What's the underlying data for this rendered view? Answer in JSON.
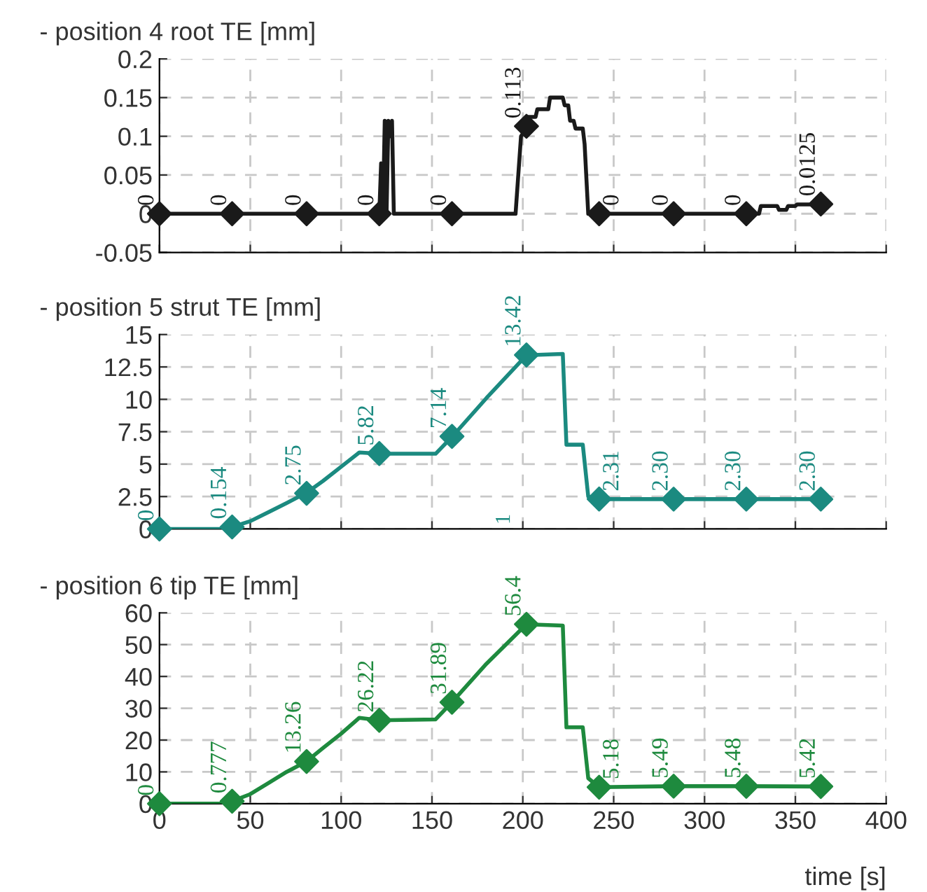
{
  "chart_data": [
    {
      "type": "line",
      "title": "- position 4 root TE [mm]",
      "xlim": [
        0,
        400
      ],
      "xticks": [
        0,
        50,
        100,
        150,
        200,
        250,
        300,
        350,
        400
      ],
      "ylim": [
        -0.05,
        0.2
      ],
      "yticks": [
        -0.05,
        0,
        0.05,
        0.1,
        0.15,
        0.2
      ],
      "grid": true,
      "tick_labels": "y",
      "line_style": "solid",
      "series": [
        {
          "type": "line",
          "color": "#1a1a1a",
          "marker": "none",
          "x": [
            0,
            121,
            122,
            123,
            124,
            125,
            126,
            127,
            128,
            129,
            130,
            131,
            132,
            196,
            199,
            202,
            203,
            207,
            208,
            214,
            215,
            222,
            223,
            225,
            226,
            228,
            229,
            233,
            234,
            236,
            330,
            331,
            340,
            341,
            345,
            346,
            350,
            351,
            364
          ],
          "values": [
            0,
            0,
            0.065,
            0,
            0.12,
            0,
            0.12,
            0.1,
            0.12,
            0,
            0,
            0,
            0,
            0,
            0.1,
            0.11,
            0.125,
            0.125,
            0.135,
            0.135,
            0.15,
            0.15,
            0.14,
            0.14,
            0.12,
            0.12,
            0.11,
            0.11,
            0.09,
            0,
            0,
            0.01,
            0.01,
            0.005,
            0.005,
            0.01,
            0.01,
            0.012,
            0.012
          ]
        },
        {
          "type": "scatter",
          "color": "#1a1a1a",
          "marker": "diamond",
          "x": [
            0,
            40,
            81,
            121,
            161,
            202,
            242,
            283,
            323,
            364
          ],
          "values": [
            0,
            0,
            0,
            0,
            0,
            0.113,
            0,
            0,
            0,
            0.0125
          ],
          "value_labels": [
            "0",
            "0",
            "0",
            "0",
            "0",
            "0.113",
            "0",
            "0",
            "0",
            "0.0125"
          ]
        }
      ]
    },
    {
      "type": "line",
      "title": "- position 5 strut TE [mm]",
      "xlim": [
        0,
        400
      ],
      "xticks": [
        0,
        50,
        100,
        150,
        200,
        250,
        300,
        350,
        400
      ],
      "ylim": [
        0,
        15
      ],
      "yticks": [
        0,
        2.5,
        5,
        7.5,
        10,
        12.5,
        15
      ],
      "grid": true,
      "tick_labels": "y",
      "line_style": "solid",
      "annotations": [
        "1"
      ],
      "series": [
        {
          "type": "line",
          "color": "#1b8a80",
          "marker": "none",
          "x": [
            0,
            35,
            40,
            50,
            60,
            70,
            81,
            90,
            100,
            110,
            121,
            152,
            161,
            180,
            202,
            222,
            224,
            233,
            236,
            242,
            364
          ],
          "values": [
            0,
            0,
            0.15,
            0.6,
            1.3,
            2.0,
            2.8,
            3.7,
            4.8,
            5.9,
            5.8,
            5.8,
            7.1,
            10.1,
            13.4,
            13.5,
            6.5,
            6.5,
            2.5,
            2.3,
            2.3
          ]
        },
        {
          "type": "scatter",
          "color": "#1b8a80",
          "marker": "diamond",
          "x": [
            0,
            40,
            81,
            121,
            161,
            202,
            242,
            283,
            323,
            364
          ],
          "values": [
            0,
            0.154,
            2.75,
            5.82,
            7.14,
            13.42,
            2.31,
            2.3,
            2.3,
            2.3
          ],
          "value_labels": [
            "0",
            "0.154",
            "2.75",
            "5.82",
            "7.14",
            "13.42",
            "2.31",
            "2.30",
            "2.30",
            "2.30"
          ]
        }
      ]
    },
    {
      "type": "line",
      "title": "- position 6 tip TE [mm]",
      "xlabel": "time [s]",
      "xlim": [
        0,
        400
      ],
      "xticks": [
        0,
        50,
        100,
        150,
        200,
        250,
        300,
        350,
        400
      ],
      "ylim": [
        0,
        60
      ],
      "yticks": [
        0,
        10,
        20,
        30,
        40,
        50,
        60
      ],
      "grid": true,
      "line_style": "solid",
      "series": [
        {
          "type": "line",
          "color": "#1e8a3e",
          "marker": "none",
          "x": [
            0,
            35,
            40,
            50,
            60,
            70,
            81,
            90,
            100,
            110,
            121,
            152,
            161,
            180,
            202,
            222,
            224,
            233,
            236,
            242,
            283,
            323,
            364
          ],
          "values": [
            0,
            0,
            0.8,
            3,
            6.5,
            10,
            13.3,
            17.5,
            22,
            27,
            26.2,
            26.5,
            31.9,
            44,
            56.4,
            56,
            24,
            24,
            8,
            5.2,
            5.5,
            5.5,
            5.4
          ]
        },
        {
          "type": "scatter",
          "color": "#1e8a3e",
          "marker": "diamond",
          "x": [
            0,
            40,
            81,
            121,
            161,
            202,
            242,
            283,
            323,
            364
          ],
          "values": [
            0,
            0.777,
            13.26,
            26.22,
            31.89,
            56.4,
            5.18,
            5.49,
            5.48,
            5.42
          ],
          "value_labels": [
            "0",
            "0.777",
            "13.26",
            "26.22",
            "31.89",
            "56.4",
            "5.18",
            "5.49",
            "5.48",
            "5.42"
          ]
        }
      ]
    }
  ]
}
